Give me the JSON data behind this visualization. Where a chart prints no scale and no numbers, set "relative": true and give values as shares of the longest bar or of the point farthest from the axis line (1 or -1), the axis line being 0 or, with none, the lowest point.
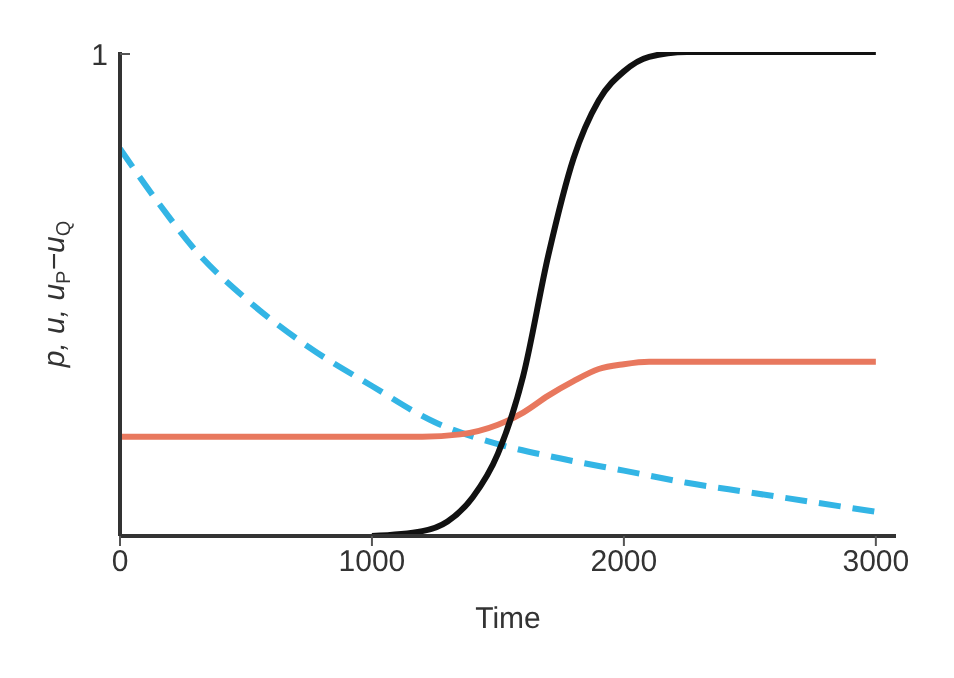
{
  "chart_data": {
    "type": "line",
    "xlabel": "Time",
    "ylabel": "p, u, u$_{P}$−u$_{Q}$",
    "xlim": [
      0,
      3080
    ],
    "xticks": [
      0,
      1000,
      2000,
      3000
    ],
    "relative": true,
    "annotations": [
      "1"
    ],
    "grid": false,
    "legend": false,
    "marker": "none",
    "series": [
      {
        "color": "#33b5e5",
        "line_style": "dashed",
        "x": [
          0,
          150,
          300,
          500,
          750,
          1000,
          1250,
          1500,
          1750,
          2000,
          2250,
          2500,
          2750,
          3000
        ],
        "values": [
          0.8,
          0.69,
          0.59,
          0.49,
          0.39,
          0.31,
          0.235,
          0.19,
          0.16,
          0.135,
          0.11,
          0.09,
          0.07,
          0.05
        ]
      },
      {
        "color": "#e8785e",
        "line_style": "solid",
        "x": [
          0,
          1200,
          1350,
          1500,
          1600,
          1700,
          1800,
          1900,
          2000,
          2100,
          3000
        ],
        "values": [
          0.205,
          0.205,
          0.21,
          0.23,
          0.255,
          0.29,
          0.32,
          0.345,
          0.355,
          0.36,
          0.36
        ]
      },
      {
        "color": "#111111",
        "line_style": "solid",
        "x": [
          1000,
          1200,
          1300,
          1400,
          1500,
          1600,
          1700,
          1800,
          1900,
          2000,
          2100,
          2250,
          3000
        ],
        "values": [
          0,
          0.01,
          0.03,
          0.08,
          0.17,
          0.33,
          0.58,
          0.78,
          0.9,
          0.96,
          0.99,
          1,
          1
        ]
      }
    ]
  }
}
